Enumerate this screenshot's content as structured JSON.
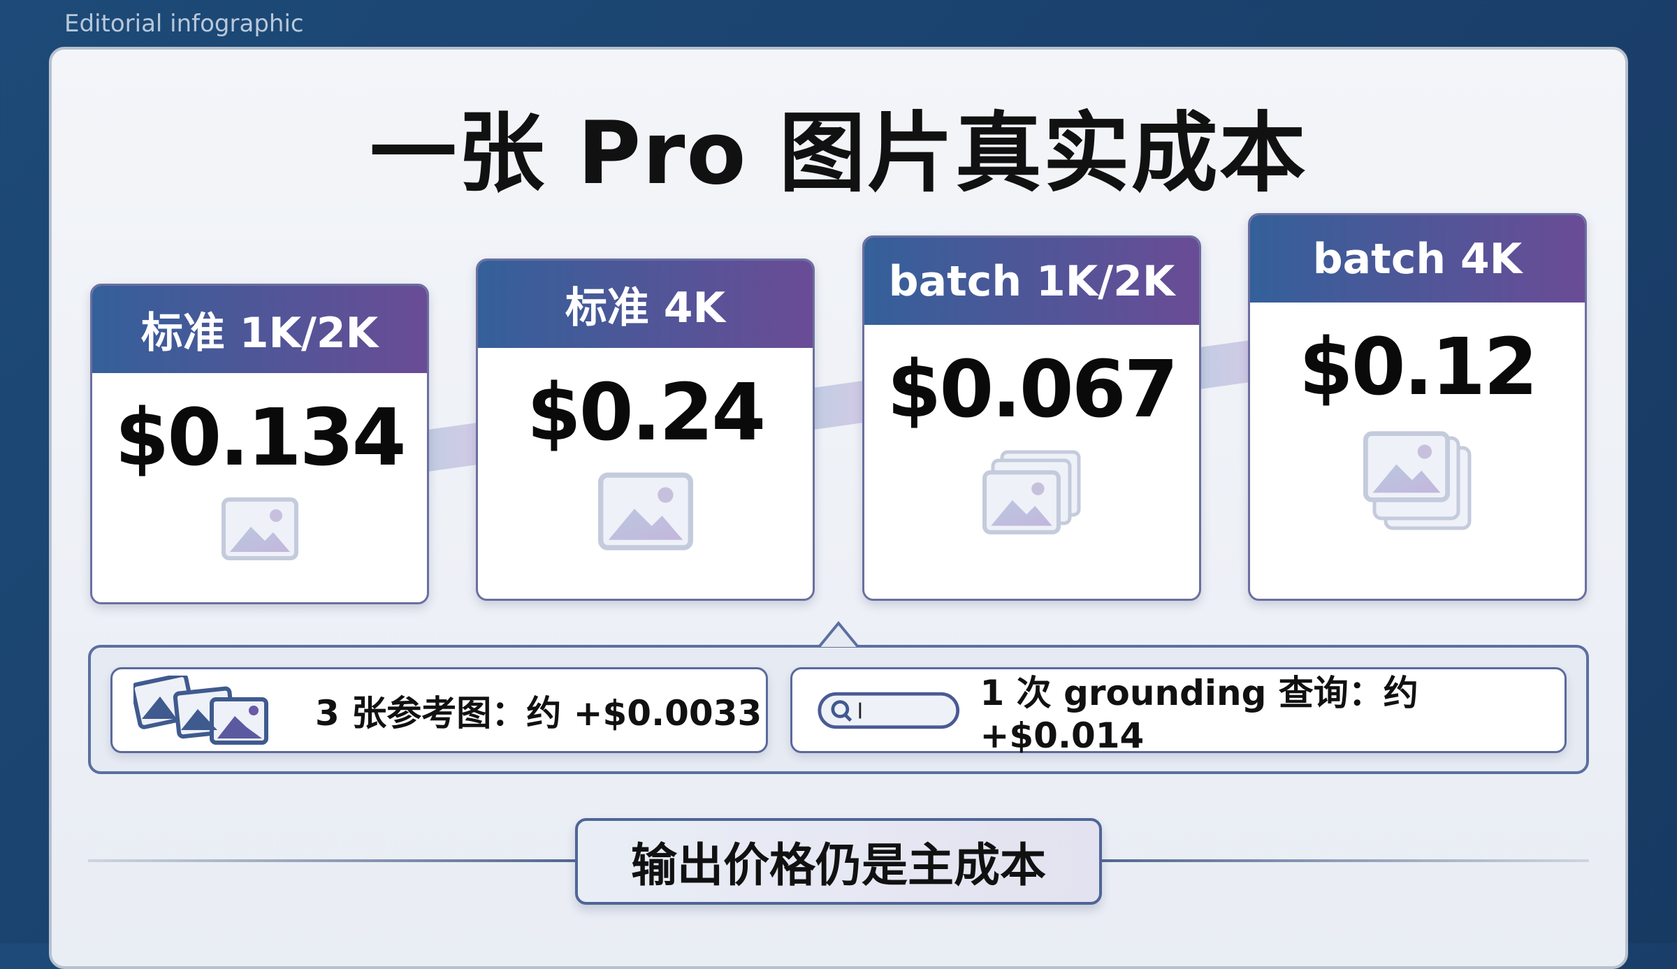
{
  "header_tag": "Editorial infographic",
  "title": "一张 Pro 图片真实成本",
  "cards": [
    {
      "label": "标准 1K/2K",
      "price": "$0.134",
      "icon": "image-icon"
    },
    {
      "label": "标准 4K",
      "price": "$0.24",
      "icon": "image-icon"
    },
    {
      "label": "batch 1K/2K",
      "price": "$0.067",
      "icon": "image-stack-icon"
    },
    {
      "label": "batch 4K",
      "price": "$0.12",
      "icon": "image-stack-icon"
    }
  ],
  "extras": [
    {
      "text": "3 张参考图：约 +$0.0033",
      "icon": "reference-images-icon"
    },
    {
      "text": "1 次 grounding 查询：约 +$0.014",
      "icon": "search-bar-icon"
    }
  ],
  "conclusion": "输出价格仍是主成本",
  "colors": {
    "header_start": "#34609a",
    "header_end": "#6a4c96",
    "background": "#1d4a78"
  }
}
